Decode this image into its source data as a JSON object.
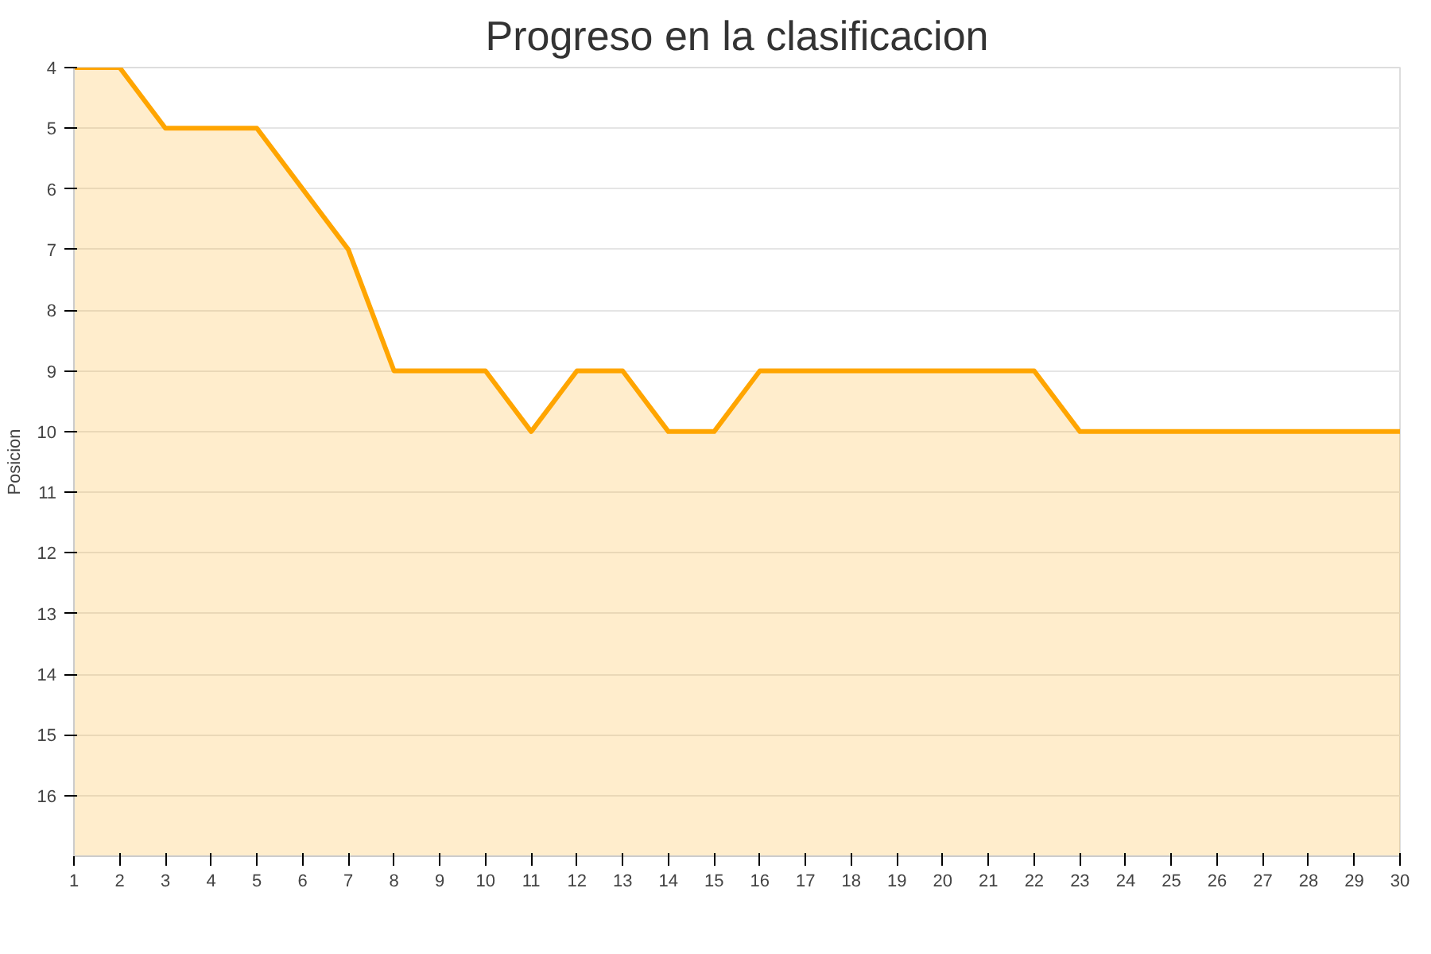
{
  "chart_data": {
    "type": "area",
    "title": "Progreso en la clasificacion",
    "ylabel": "Posicion",
    "x": [
      1,
      2,
      3,
      4,
      5,
      6,
      7,
      8,
      9,
      10,
      11,
      12,
      13,
      14,
      15,
      16,
      17,
      18,
      19,
      20,
      21,
      22,
      23,
      24,
      25,
      26,
      27,
      28,
      29,
      30
    ],
    "series": [
      {
        "color": "#ffa500",
        "values": [
          4,
          4,
          5,
          5,
          5,
          6,
          7,
          9,
          9,
          9,
          10,
          9,
          9,
          10,
          10,
          9,
          9,
          9,
          9,
          9,
          9,
          9,
          10,
          10,
          10,
          10,
          10,
          10,
          10,
          10
        ]
      }
    ],
    "xlim": [
      1,
      30
    ],
    "xticks": [
      1,
      2,
      3,
      4,
      5,
      6,
      7,
      8,
      9,
      10,
      11,
      12,
      13,
      14,
      15,
      16,
      17,
      18,
      19,
      20,
      21,
      22,
      23,
      24,
      25,
      26,
      27,
      28,
      29,
      30
    ],
    "ylim": [
      17,
      4
    ],
    "yticks": [
      4,
      5,
      6,
      7,
      8,
      9,
      10,
      11,
      12,
      13,
      14,
      15,
      16
    ],
    "grid": "y"
  }
}
